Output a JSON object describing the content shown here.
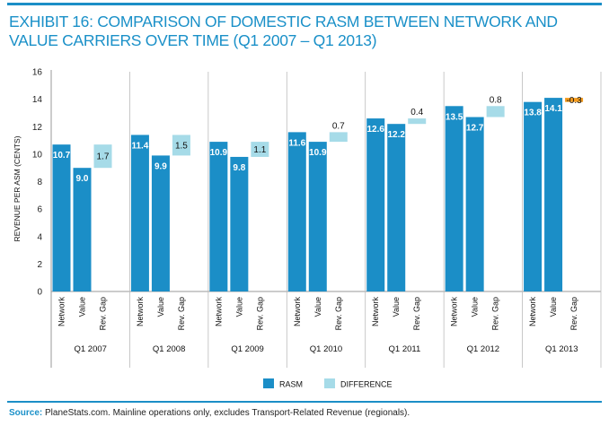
{
  "title": "EXHIBIT 16: COMPARISON OF DOMESTIC RASM BETWEEN NETWORK AND VALUE CARRIERS OVER TIME (Q1 2007 – Q1 2013)",
  "source_label": "Source:",
  "source_text": " PlaneStats.com. Mainline operations only, excludes Transport-Related Revenue (regionals).",
  "colors": {
    "rasm": "#1b8ec7",
    "difference": "#a6dbe8",
    "negative": "#f39a1c",
    "accent": "#1a90c8"
  },
  "chart_data": {
    "type": "bar",
    "ylabel": "REVENUE PER ASM (CENTS)",
    "ylim": [
      0,
      16
    ],
    "yticks": [
      0,
      2,
      4,
      6,
      8,
      10,
      12,
      14,
      16
    ],
    "grid": false,
    "sub_categories": [
      "Network",
      "Value",
      "Rev. Gap"
    ],
    "legend": [
      {
        "name": "RASM",
        "color_key": "rasm"
      },
      {
        "name": "DIFFERENCE",
        "color_key": "difference"
      }
    ],
    "groups": [
      {
        "label": "Q1 2007",
        "network": 10.7,
        "value": 9.0,
        "gap": 1.7
      },
      {
        "label": "Q1 2008",
        "network": 11.4,
        "value": 9.9,
        "gap": 1.5
      },
      {
        "label": "Q1 2009",
        "network": 10.9,
        "value": 9.8,
        "gap": 1.1
      },
      {
        "label": "Q1 2010",
        "network": 11.6,
        "value": 10.9,
        "gap": 0.7
      },
      {
        "label": "Q1 2011",
        "network": 12.6,
        "value": 12.2,
        "gap": 0.4
      },
      {
        "label": "Q1 2012",
        "network": 13.5,
        "value": 12.7,
        "gap": 0.8
      },
      {
        "label": "Q1 2013",
        "network": 13.8,
        "value": 14.1,
        "gap": -0.3
      }
    ]
  }
}
